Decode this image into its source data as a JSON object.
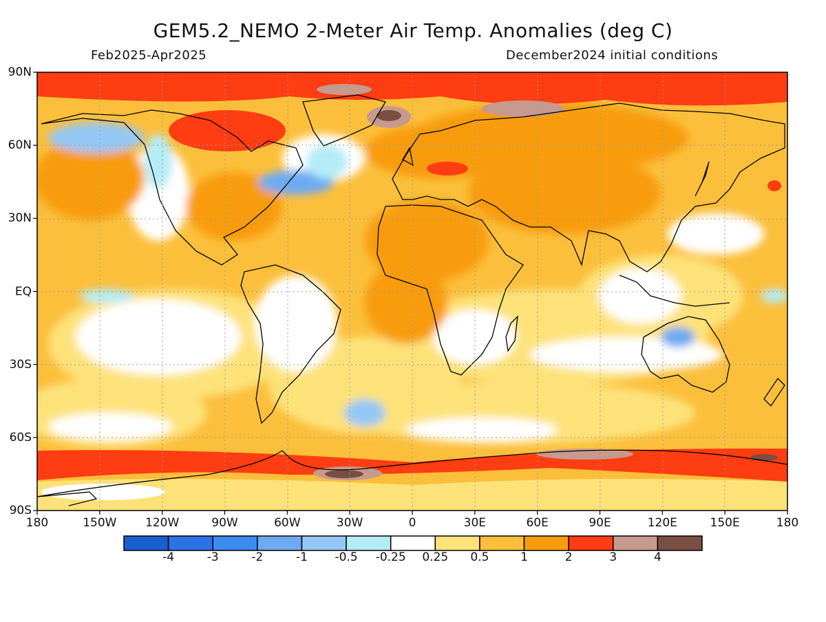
{
  "header": {
    "title": "GEM5.2_NEMO 2-Meter Air Temp. Anomalies (deg C)",
    "period": "Feb2025-Apr2025",
    "initial_conditions": "December2024 initial conditions"
  },
  "map": {
    "projection": "cylindrical equidistant",
    "lon_range": [
      -180,
      180
    ],
    "lat_range": [
      -90,
      90
    ],
    "gridlines": "dotted",
    "lat_labels": [
      "90N",
      "60N",
      "30N",
      "EQ",
      "30S",
      "60S",
      "90S"
    ],
    "lon_labels": [
      "180",
      "150W",
      "120W",
      "90W",
      "60W",
      "30W",
      "0",
      "30E",
      "60E",
      "90E",
      "120E",
      "150E",
      "180"
    ]
  },
  "colorbar": {
    "labels": [
      "-4",
      "-3",
      "-2",
      "-1",
      "-0.5",
      "-0.25",
      "0.25",
      "0.5",
      "1",
      "2",
      "3",
      "4"
    ],
    "colors": [
      "#1a5fd0",
      "#2a72e6",
      "#3d8bf0",
      "#6eaaf2",
      "#95c7f4",
      "#b4ecf6",
      "#ffffff",
      "#fde27a",
      "#fbbf3c",
      "#f89c0e",
      "#ff3d12",
      "#c79a8e",
      "#7a4e43"
    ]
  }
}
